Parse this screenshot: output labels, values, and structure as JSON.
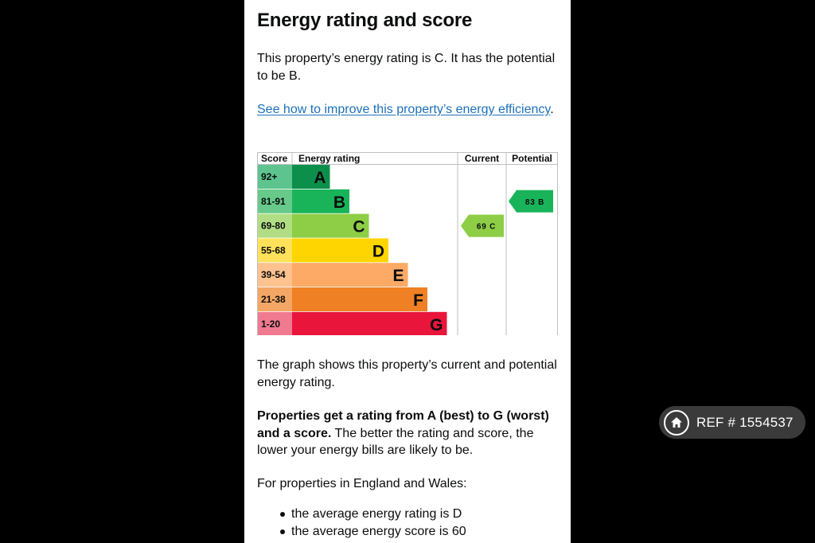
{
  "heading": "Energy rating and score",
  "intro": "This property’s energy rating is C. It has the potential to be B.",
  "improve_link": "See how to improve this property’s energy efficiency",
  "improve_link_suffix": ".",
  "graph_note": "The graph shows this property’s current and potential energy rating.",
  "rating_info_bold": "Properties get a rating from A (best) to G (worst) and a score.",
  "rating_info_rest": " The better the rating and score, the lower your energy bills are likely to be.",
  "regional_intro": "For properties in England and Wales:",
  "averages": [
    "the average energy rating is D",
    "the average energy score is 60"
  ],
  "chart_data": {
    "type": "bar",
    "headers": {
      "score": "Score",
      "rating": "Energy rating",
      "current": "Current",
      "potential": "Potential"
    },
    "bands": [
      {
        "range": "92+",
        "letter": "A",
        "color": "#0c8f4b",
        "range_color": "#5dc48f"
      },
      {
        "range": "81-91",
        "letter": "B",
        "color": "#19b459",
        "range_color": "#67ca8a"
      },
      {
        "range": "69-80",
        "letter": "C",
        "color": "#8dce46",
        "range_color": "#b1de84"
      },
      {
        "range": "55-68",
        "letter": "D",
        "color": "#ffd500",
        "range_color": "#ffe25a"
      },
      {
        "range": "39-54",
        "letter": "E",
        "color": "#fcaa65",
        "range_color": "#fdc28f"
      },
      {
        "range": "21-38",
        "letter": "F",
        "color": "#ef8023",
        "range_color": "#f4a665"
      },
      {
        "range": "1-20",
        "letter": "G",
        "color": "#e9153b",
        "range_color": "#f07a8f"
      }
    ],
    "current": {
      "score": 69,
      "letter": "C",
      "label": "69 C",
      "color": "#8dce46"
    },
    "potential": {
      "score": 83,
      "letter": "B",
      "label": "83 B",
      "color": "#19b459"
    }
  },
  "ref_badge": {
    "label": "REF # 1554537",
    "icon": "home-icon"
  }
}
